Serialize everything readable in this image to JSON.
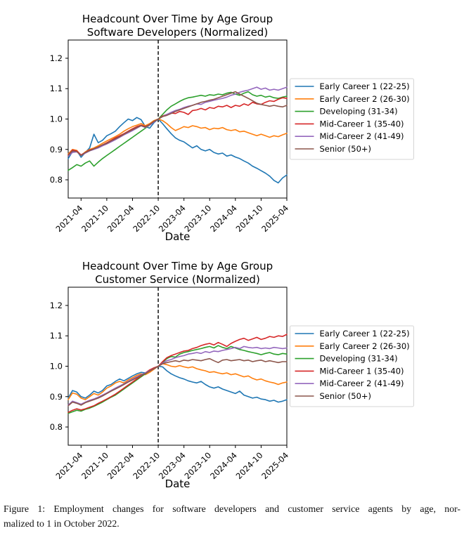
{
  "figure": {
    "caption_line1": "Figure 1: Employment changes for software developers and customer service agents by age, nor-",
    "caption_line2": "malized to 1 in October 2022."
  },
  "chart_data": [
    {
      "type": "line",
      "title_line1": "Headcount Over Time by Age Group",
      "title_line2": "Software Developers (Normalized)",
      "xlabel": "Date",
      "x_start": "2021-01",
      "x_end": "2025-04",
      "x_tick_labels": [
        "2021-04",
        "2021-10",
        "2022-04",
        "2022-10",
        "2023-04",
        "2023-10",
        "2024-04",
        "2024-10",
        "2025-04"
      ],
      "y_tick_labels": [
        "0.8",
        "0.9",
        "1.0",
        "1.1",
        "1.2"
      ],
      "ylim": [
        0.74,
        1.26
      ],
      "vline_x": "2022-10",
      "vline_style": "dashed-black",
      "legend_position": "center-right-outside",
      "grid": false,
      "series": [
        {
          "name": "Early Career 1 (22-25)",
          "color": "#1f77b4",
          "values": [
            0.87,
            0.893,
            0.896,
            0.874,
            0.89,
            0.905,
            0.95,
            0.922,
            0.93,
            0.945,
            0.952,
            0.96,
            0.975,
            0.988,
            1.0,
            0.995,
            1.005,
            0.998,
            0.975,
            0.97,
            0.988,
            1.0,
            0.985,
            0.968,
            0.952,
            0.938,
            0.93,
            0.925,
            0.915,
            0.905,
            0.912,
            0.9,
            0.895,
            0.9,
            0.89,
            0.885,
            0.888,
            0.878,
            0.882,
            0.875,
            0.87,
            0.862,
            0.855,
            0.845,
            0.838,
            0.83,
            0.822,
            0.812,
            0.798,
            0.79,
            0.806,
            0.816
          ]
        },
        {
          "name": "Early Career 2 (26-30)",
          "color": "#ff7f0e",
          "values": [
            0.885,
            0.9,
            0.897,
            0.88,
            0.892,
            0.9,
            0.905,
            0.912,
            0.92,
            0.928,
            0.935,
            0.942,
            0.95,
            0.96,
            0.968,
            0.975,
            0.98,
            0.985,
            0.978,
            0.985,
            0.995,
            1.0,
            0.995,
            0.985,
            0.972,
            0.962,
            0.968,
            0.975,
            0.972,
            0.978,
            0.975,
            0.97,
            0.972,
            0.965,
            0.97,
            0.968,
            0.972,
            0.965,
            0.962,
            0.965,
            0.958,
            0.96,
            0.955,
            0.95,
            0.945,
            0.95,
            0.945,
            0.94,
            0.945,
            0.942,
            0.948,
            0.953
          ]
        },
        {
          "name": "Developing (31-34)",
          "color": "#2ca02c",
          "values": [
            0.831,
            0.84,
            0.85,
            0.845,
            0.855,
            0.862,
            0.845,
            0.858,
            0.87,
            0.88,
            0.89,
            0.9,
            0.91,
            0.92,
            0.93,
            0.94,
            0.95,
            0.96,
            0.97,
            0.98,
            0.992,
            1.0,
            1.015,
            1.03,
            1.042,
            1.05,
            1.058,
            1.065,
            1.07,
            1.072,
            1.075,
            1.078,
            1.075,
            1.08,
            1.078,
            1.082,
            1.08,
            1.085,
            1.088,
            1.082,
            1.078,
            1.085,
            1.09,
            1.08,
            1.075,
            1.078,
            1.072,
            1.075,
            1.07,
            1.068,
            1.072,
            1.075
          ]
        },
        {
          "name": "Mid-Career 1 (35-40)",
          "color": "#d62728",
          "values": [
            0.882,
            0.898,
            0.895,
            0.882,
            0.89,
            0.898,
            0.902,
            0.908,
            0.915,
            0.922,
            0.93,
            0.938,
            0.945,
            0.952,
            0.96,
            0.968,
            0.975,
            0.98,
            0.975,
            0.982,
            0.992,
            1.0,
            1.01,
            1.015,
            1.02,
            1.018,
            1.025,
            1.022,
            1.015,
            1.028,
            1.03,
            1.035,
            1.03,
            1.038,
            1.035,
            1.042,
            1.04,
            1.045,
            1.038,
            1.045,
            1.042,
            1.05,
            1.045,
            1.055,
            1.05,
            1.048,
            1.055,
            1.06,
            1.058,
            1.065,
            1.07,
            1.068
          ]
        },
        {
          "name": "Mid-Career 2 (41-49)",
          "color": "#9467bd",
          "values": [
            0.878,
            0.89,
            0.892,
            0.88,
            0.888,
            0.895,
            0.9,
            0.905,
            0.912,
            0.918,
            0.925,
            0.932,
            0.94,
            0.948,
            0.955,
            0.962,
            0.97,
            0.978,
            0.972,
            0.98,
            0.99,
            1.0,
            1.008,
            1.015,
            1.022,
            1.028,
            1.032,
            1.038,
            1.042,
            1.045,
            1.05,
            1.048,
            1.055,
            1.058,
            1.062,
            1.065,
            1.068,
            1.072,
            1.078,
            1.082,
            1.088,
            1.092,
            1.095,
            1.1,
            1.105,
            1.098,
            1.102,
            1.095,
            1.098,
            1.095,
            1.1,
            1.105
          ]
        },
        {
          "name": "Senior (50+)",
          "color": "#8c564b",
          "values": [
            0.881,
            0.895,
            0.893,
            0.88,
            0.89,
            0.896,
            0.902,
            0.908,
            0.915,
            0.92,
            0.928,
            0.935,
            0.942,
            0.95,
            0.958,
            0.965,
            0.972,
            0.978,
            0.974,
            0.982,
            0.992,
            1.0,
            1.008,
            1.012,
            1.018,
            1.025,
            1.03,
            1.035,
            1.04,
            1.045,
            1.05,
            1.055,
            1.058,
            1.062,
            1.065,
            1.07,
            1.075,
            1.08,
            1.085,
            1.09,
            1.082,
            1.075,
            1.068,
            1.06,
            1.052,
            1.048,
            1.045,
            1.042,
            1.045,
            1.042,
            1.04,
            1.045
          ]
        }
      ]
    },
    {
      "type": "line",
      "title_line1": "Headcount Over Time by Age Group",
      "title_line2": "Customer Service (Normalized)",
      "xlabel": "Date",
      "x_start": "2021-01",
      "x_end": "2025-04",
      "x_tick_labels": [
        "2021-04",
        "2021-10",
        "2022-04",
        "2022-10",
        "2023-04",
        "2023-10",
        "2024-04",
        "2024-10",
        "2025-04"
      ],
      "y_tick_labels": [
        "0.8",
        "0.9",
        "1.0",
        "1.1",
        "1.2"
      ],
      "ylim": [
        0.74,
        1.26
      ],
      "vline_x": "2022-10",
      "vline_style": "dashed-black",
      "legend_position": "center-right-outside",
      "grid": false,
      "series": [
        {
          "name": "Early Career 1 (22-25)",
          "color": "#1f77b4",
          "values": [
            0.895,
            0.92,
            0.915,
            0.9,
            0.895,
            0.905,
            0.918,
            0.912,
            0.92,
            0.935,
            0.94,
            0.95,
            0.958,
            0.952,
            0.96,
            0.968,
            0.975,
            0.98,
            0.978,
            0.985,
            0.992,
            1.0,
            0.998,
            0.985,
            0.975,
            0.968,
            0.962,
            0.958,
            0.952,
            0.948,
            0.945,
            0.95,
            0.94,
            0.932,
            0.928,
            0.932,
            0.925,
            0.92,
            0.915,
            0.91,
            0.918,
            0.905,
            0.9,
            0.895,
            0.898,
            0.892,
            0.89,
            0.885,
            0.888,
            0.882,
            0.885,
            0.89
          ]
        },
        {
          "name": "Early Career 2 (26-30)",
          "color": "#ff7f0e",
          "values": [
            0.89,
            0.912,
            0.908,
            0.895,
            0.89,
            0.9,
            0.91,
            0.905,
            0.915,
            0.928,
            0.935,
            0.945,
            0.95,
            0.945,
            0.955,
            0.962,
            0.97,
            0.975,
            0.972,
            0.98,
            0.99,
            1.0,
            1.008,
            1.005,
            1.0,
            0.998,
            1.002,
            0.998,
            0.995,
            0.998,
            0.992,
            0.988,
            0.985,
            0.98,
            0.982,
            0.978,
            0.975,
            0.978,
            0.972,
            0.975,
            0.97,
            0.965,
            0.968,
            0.96,
            0.955,
            0.958,
            0.952,
            0.948,
            0.945,
            0.94,
            0.945,
            0.948
          ]
        },
        {
          "name": "Developing (31-34)",
          "color": "#2ca02c",
          "values": [
            0.845,
            0.85,
            0.855,
            0.852,
            0.858,
            0.862,
            0.868,
            0.875,
            0.882,
            0.89,
            0.898,
            0.905,
            0.915,
            0.925,
            0.935,
            0.945,
            0.955,
            0.965,
            0.975,
            0.985,
            0.992,
            1.0,
            1.012,
            1.025,
            1.032,
            1.03,
            1.04,
            1.045,
            1.048,
            1.052,
            1.055,
            1.058,
            1.062,
            1.065,
            1.06,
            1.068,
            1.062,
            1.058,
            1.065,
            1.06,
            1.055,
            1.052,
            1.048,
            1.045,
            1.042,
            1.038,
            1.042,
            1.045,
            1.04,
            1.038,
            1.042,
            1.04
          ]
        },
        {
          "name": "Mid-Career 1 (35-40)",
          "color": "#d62728",
          "values": [
            0.848,
            0.855,
            0.86,
            0.856,
            0.86,
            0.865,
            0.87,
            0.878,
            0.885,
            0.892,
            0.9,
            0.908,
            0.918,
            0.928,
            0.938,
            0.948,
            0.958,
            0.968,
            0.978,
            0.988,
            0.995,
            1.0,
            1.015,
            1.028,
            1.035,
            1.04,
            1.045,
            1.05,
            1.052,
            1.058,
            1.062,
            1.068,
            1.072,
            1.075,
            1.07,
            1.078,
            1.072,
            1.065,
            1.075,
            1.082,
            1.088,
            1.092,
            1.085,
            1.09,
            1.095,
            1.088,
            1.092,
            1.098,
            1.095,
            1.1,
            1.098,
            1.105
          ]
        },
        {
          "name": "Mid-Career 2 (41-49)",
          "color": "#9467bd",
          "values": [
            0.872,
            0.885,
            0.88,
            0.875,
            0.882,
            0.888,
            0.892,
            0.898,
            0.905,
            0.912,
            0.92,
            0.928,
            0.935,
            0.942,
            0.95,
            0.958,
            0.965,
            0.972,
            0.978,
            0.985,
            0.992,
            1.0,
            1.01,
            1.018,
            1.022,
            1.028,
            1.032,
            1.035,
            1.04,
            1.042,
            1.045,
            1.042,
            1.048,
            1.045,
            1.05,
            1.048,
            1.052,
            1.055,
            1.058,
            1.062,
            1.058,
            1.065,
            1.062,
            1.06,
            1.062,
            1.058,
            1.06,
            1.058,
            1.062,
            1.06,
            1.058,
            1.06
          ]
        },
        {
          "name": "Senior (50+)",
          "color": "#8c564b",
          "values": [
            0.87,
            0.882,
            0.878,
            0.872,
            0.88,
            0.885,
            0.89,
            0.895,
            0.902,
            0.91,
            0.918,
            0.925,
            0.932,
            0.94,
            0.948,
            0.955,
            0.962,
            0.97,
            0.976,
            0.984,
            0.992,
            1.0,
            1.008,
            1.012,
            1.015,
            1.018,
            1.015,
            1.02,
            1.018,
            1.022,
            1.02,
            1.018,
            1.022,
            1.025,
            1.018,
            1.012,
            1.02,
            1.022,
            1.018,
            1.02,
            1.022,
            1.018,
            1.02,
            1.015,
            1.018,
            1.02,
            1.015,
            1.018,
            1.015,
            1.012,
            1.015,
            1.015
          ]
        }
      ]
    }
  ]
}
